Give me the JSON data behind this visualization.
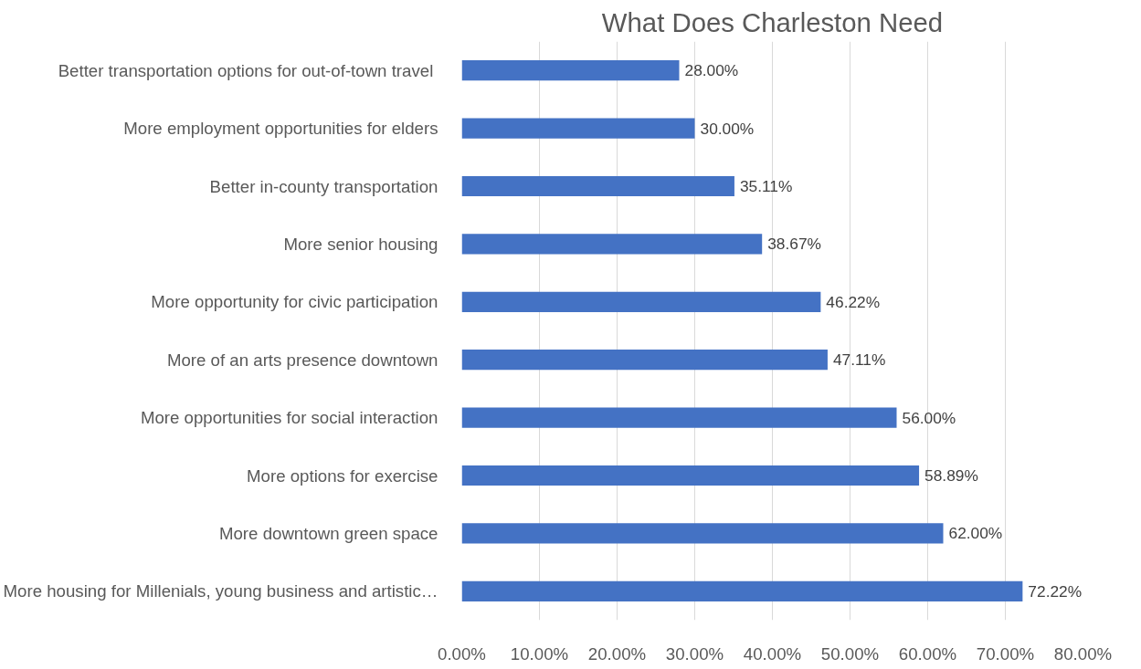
{
  "chart_data": {
    "type": "bar",
    "orientation": "horizontal",
    "title": "What Does Charleston Need",
    "categories": [
      "Better  transportation options for out-of-town travel",
      "More employment opportunities for elders",
      "Better in-county transportation",
      "More senior housing",
      "More opportunity for civic participation",
      "More of an arts presence downtown",
      "More opportunities for social interaction",
      "More options for exercise",
      "More downtown green space",
      "More housing for Millenials, young business and artistic…"
    ],
    "values": [
      28.0,
      30.0,
      35.11,
      38.67,
      46.22,
      47.11,
      56.0,
      58.89,
      62.0,
      72.22
    ],
    "value_labels": [
      "28.00%",
      "30.00%",
      "35.11%",
      "38.67%",
      "46.22%",
      "47.11%",
      "56.00%",
      "58.89%",
      "62.00%",
      "72.22%"
    ],
    "color": "#4472c4",
    "xlim": [
      0,
      80
    ],
    "xticks": [
      {
        "value": 0,
        "label": "0.00%"
      },
      {
        "value": 10,
        "label": "10.00%"
      },
      {
        "value": 20,
        "label": "20.00%"
      },
      {
        "value": 30,
        "label": "30.00%"
      },
      {
        "value": 40,
        "label": "40.00%"
      },
      {
        "value": 50,
        "label": "50.00%"
      },
      {
        "value": 60,
        "label": "60.00%"
      },
      {
        "value": 70,
        "label": "70.00%"
      },
      {
        "value": 80,
        "label": "80.00%"
      }
    ],
    "grid": "x"
  }
}
